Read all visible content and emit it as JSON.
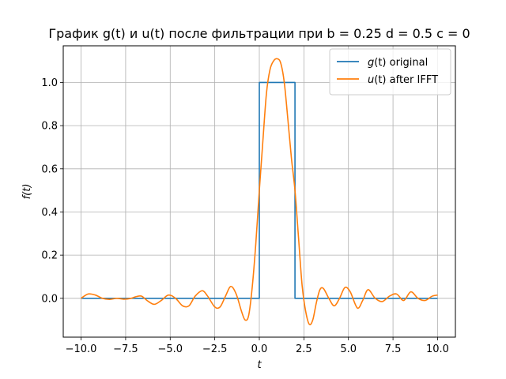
{
  "chart_data": {
    "type": "line",
    "title": "График g(t) и u(t) после фильтрации при b = 0.25 d = 0.5 c = 0",
    "xlabel": "t",
    "ylabel": "f(t)",
    "xlim": [
      -11.0,
      11.0
    ],
    "ylim": [
      -0.18,
      1.17
    ],
    "xticks": [
      -10.0,
      -7.5,
      -5.0,
      -2.5,
      0.0,
      2.5,
      5.0,
      7.5,
      10.0
    ],
    "xtick_labels": [
      "−10.0",
      "−7.5",
      "−5.0",
      "−2.5",
      "0.0",
      "2.5",
      "5.0",
      "7.5",
      "10.0"
    ],
    "yticks": [
      0.0,
      0.2,
      0.4,
      0.6,
      0.8,
      1.0
    ],
    "ytick_labels": [
      "0.0",
      "0.2",
      "0.4",
      "0.6",
      "0.8",
      "1.0"
    ],
    "grid": true,
    "legend_position": "top-right",
    "series": [
      {
        "name": "g(t) original",
        "color": "#1f77b4",
        "x": [
          -10.0,
          0.0,
          0.0,
          2.0,
          2.0,
          10.0
        ],
        "y": [
          0.0,
          0.0,
          1.0,
          1.0,
          0.0,
          0.0
        ]
      },
      {
        "name": "u(t) after IFFT",
        "color": "#ff7f0e",
        "x": [
          -10.0,
          -9.6,
          -9.2,
          -8.8,
          -8.4,
          -8.0,
          -7.6,
          -7.2,
          -6.9,
          -6.6,
          -6.3,
          -5.9,
          -5.5,
          -5.1,
          -4.7,
          -4.3,
          -3.95,
          -3.6,
          -3.2,
          -2.9,
          -2.5,
          -2.2,
          -1.9,
          -1.6,
          -1.3,
          -1.0,
          -0.8,
          -0.6,
          -0.4,
          -0.2,
          0.0,
          0.2,
          0.4,
          0.6,
          0.8,
          1.0,
          1.2,
          1.4,
          1.6,
          1.8,
          2.0,
          2.2,
          2.4,
          2.6,
          2.8,
          3.0,
          3.2,
          3.4,
          3.6,
          3.9,
          4.2,
          4.5,
          4.8,
          5.1,
          5.5,
          5.8,
          6.1,
          6.5,
          6.9,
          7.3,
          7.7,
          8.1,
          8.5,
          8.9,
          9.3,
          9.7,
          10.0
        ],
        "y": [
          0.0,
          0.02,
          0.015,
          0.0,
          -0.005,
          0.0,
          -0.004,
          0.0,
          0.008,
          0.01,
          -0.01,
          -0.028,
          -0.01,
          0.015,
          0.0,
          -0.035,
          -0.035,
          0.01,
          0.035,
          0.01,
          -0.04,
          -0.04,
          0.01,
          0.055,
          0.02,
          -0.06,
          -0.1,
          -0.08,
          0.05,
          0.25,
          0.5,
          0.73,
          0.95,
          1.06,
          1.1,
          1.11,
          1.09,
          1.0,
          0.83,
          0.65,
          0.5,
          0.28,
          0.06,
          -0.06,
          -0.12,
          -0.1,
          -0.02,
          0.04,
          0.045,
          0.0,
          -0.035,
          0.0,
          0.05,
          0.03,
          -0.045,
          -0.01,
          0.04,
          0.0,
          -0.015,
          0.01,
          0.02,
          -0.01,
          0.03,
          0.0,
          -0.01,
          0.01,
          0.015
        ]
      }
    ]
  },
  "legend": {
    "items": [
      {
        "italic": "g",
        "rest": "(t) original",
        "color": "#1f77b4"
      },
      {
        "italic": "u",
        "rest": "(t) after IFFT",
        "color": "#ff7f0e"
      }
    ]
  }
}
